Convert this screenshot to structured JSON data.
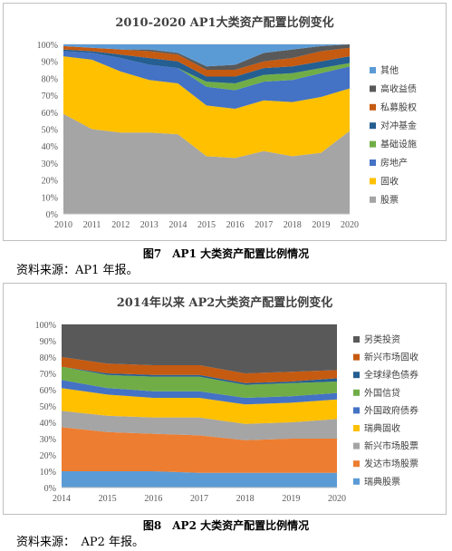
{
  "chart_data": [
    {
      "type": "area",
      "title": "2010-2020 AP1大类资产配置比例变化",
      "x": [
        "2010",
        "2011",
        "2012",
        "2013",
        "2014",
        "2015",
        "2016",
        "2017",
        "2018",
        "2019",
        "2020"
      ],
      "ylim": [
        0,
        100
      ],
      "yticks": [
        "0%",
        "10%",
        "20%",
        "30%",
        "40%",
        "50%",
        "60%",
        "70%",
        "80%",
        "90%",
        "100%"
      ],
      "legend_position": "right",
      "series": [
        {
          "name": "股票",
          "color": "#a5a5a5",
          "values": [
            59,
            50,
            48,
            48,
            47,
            34,
            33,
            37,
            34,
            36,
            49
          ]
        },
        {
          "name": "固收",
          "color": "#ffc000",
          "values": [
            34,
            41,
            36,
            31,
            30,
            30,
            29,
            30,
            32,
            33,
            25
          ]
        },
        {
          "name": "房地产",
          "color": "#4472c4",
          "values": [
            3,
            4,
            8,
            9,
            9,
            11,
            11,
            11,
            13,
            14,
            13
          ]
        },
        {
          "name": "基础设施",
          "color": "#70ad47",
          "values": [
            0,
            0,
            0,
            0,
            0,
            3,
            4,
            4,
            4,
            3,
            2
          ]
        },
        {
          "name": "对冲基金",
          "color": "#255e91",
          "values": [
            1,
            1,
            2,
            4,
            4,
            3,
            4,
            4,
            4,
            4,
            4
          ]
        },
        {
          "name": "私募股权",
          "color": "#c55a11",
          "values": [
            2,
            2,
            3,
            4,
            4,
            4,
            4,
            4,
            5,
            6,
            5
          ]
        },
        {
          "name": "高收益债",
          "color": "#595959",
          "values": [
            0,
            0,
            0,
            1,
            1,
            2,
            3,
            5,
            5,
            3,
            2
          ]
        },
        {
          "name": "其他",
          "color": "#5b9bd5",
          "values": [
            1,
            2,
            3,
            3,
            5,
            13,
            12,
            5,
            3,
            1,
            0
          ]
        }
      ],
      "caption": "图7　AP1 大类资产配置比例情况",
      "source": "资料来源：AP1 年报。"
    },
    {
      "type": "area",
      "title": "2014年以来 AP2大类资产配置比例变化",
      "x": [
        "2014",
        "2015",
        "2016",
        "2017",
        "2018",
        "2019",
        "2020"
      ],
      "ylim": [
        0,
        100
      ],
      "yticks": [
        "0%",
        "10%",
        "20%",
        "30%",
        "40%",
        "50%",
        "60%",
        "70%",
        "80%",
        "90%",
        "100%"
      ],
      "legend_position": "right",
      "series": [
        {
          "name": "瑞典股票",
          "color": "#5b9bd5",
          "values": [
            10,
            10,
            10,
            9,
            9,
            9,
            9
          ]
        },
        {
          "name": "发达市场股票",
          "color": "#ed7d31",
          "values": [
            27,
            24,
            23,
            23,
            20,
            21,
            21
          ]
        },
        {
          "name": "新兴市场股票",
          "color": "#a5a5a5",
          "values": [
            10,
            10,
            10,
            11,
            10,
            10,
            12
          ]
        },
        {
          "name": "瑞典固收",
          "color": "#ffc000",
          "values": [
            14,
            13,
            12,
            12,
            12,
            12,
            12
          ]
        },
        {
          "name": "外国政府债券",
          "color": "#4472c4",
          "values": [
            5,
            4,
            4,
            4,
            4,
            4,
            4
          ]
        },
        {
          "name": "外国信贷",
          "color": "#70ad47",
          "values": [
            8,
            8,
            9,
            9,
            8,
            8,
            7
          ]
        },
        {
          "name": "全球绿色债券",
          "color": "#255e91",
          "values": [
            0,
            1,
            1,
            1,
            1,
            1,
            2
          ]
        },
        {
          "name": "新兴市场固收",
          "color": "#c55a11",
          "values": [
            6,
            6,
            6,
            6,
            6,
            6,
            5
          ]
        },
        {
          "name": "另类投资",
          "color": "#595959",
          "values": [
            20,
            24,
            25,
            25,
            30,
            29,
            28
          ]
        }
      ],
      "caption": "图8　AP2 大类资产配置比例情况",
      "source": "资料来源：　AP2 年报。"
    }
  ]
}
